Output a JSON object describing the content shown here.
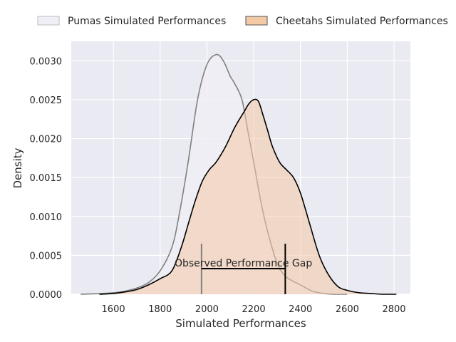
{
  "chart_data": {
    "type": "area",
    "xlabel": "Simulated Performances",
    "ylabel": "Density",
    "xlim": [
      1420,
      2870
    ],
    "ylim": [
      0,
      0.00325
    ],
    "xticks": [
      1600,
      1800,
      2000,
      2200,
      2400,
      2600,
      2800
    ],
    "xtick_labels": [
      "1600",
      "1800",
      "2000",
      "2200",
      "2400",
      "2600",
      "2800"
    ],
    "yticks": [
      0,
      0.0005,
      0.001,
      0.0015,
      0.002,
      0.0025,
      0.003
    ],
    "ytick_labels": [
      "0.0000",
      "0.0005",
      "0.0010",
      "0.0015",
      "0.0020",
      "0.0025",
      "0.0030"
    ],
    "grid": true,
    "legend_position": "top",
    "series": [
      {
        "name": "Pumas Simulated Performances",
        "fill": "#f0eff5",
        "line": "#808080",
        "x": [
          1460,
          1550,
          1600,
          1650,
          1700,
          1750,
          1800,
          1850,
          1880,
          1920,
          1960,
          2000,
          2040,
          2070,
          2100,
          2120,
          2150,
          2175,
          2200,
          2230,
          2260,
          2300,
          2330,
          2360,
          2400,
          2450,
          2500,
          2550,
          2600
        ],
        "y": [
          0,
          1e-05,
          2e-05,
          4e-05,
          8e-05,
          0.00015,
          0.0003,
          0.0006,
          0.001,
          0.0017,
          0.0025,
          0.00295,
          0.00308,
          0.003,
          0.0028,
          0.0027,
          0.0025,
          0.0021,
          0.0017,
          0.0012,
          0.0008,
          0.0004,
          0.00025,
          0.00018,
          0.00012,
          4e-05,
          1e-05,
          0,
          0
        ]
      },
      {
        "name": "Cheetahs Simulated Performances",
        "fill": "#f4c9a5",
        "line": "#000000",
        "x": [
          1540,
          1600,
          1650,
          1700,
          1750,
          1800,
          1850,
          1890,
          1920,
          1950,
          1980,
          2010,
          2040,
          2080,
          2120,
          2160,
          2180,
          2200,
          2220,
          2240,
          2260,
          2280,
          2310,
          2340,
          2370,
          2400,
          2440,
          2480,
          2520,
          2560,
          2600,
          2650,
          2700,
          2750,
          2810
        ],
        "y": [
          0,
          1e-05,
          3e-05,
          6e-05,
          0.00012,
          0.0002,
          0.0003,
          0.0006,
          0.0009,
          0.0012,
          0.00145,
          0.0016,
          0.0017,
          0.0019,
          0.00215,
          0.00235,
          0.00245,
          0.0025,
          0.00248,
          0.0023,
          0.0021,
          0.0019,
          0.0017,
          0.0016,
          0.0015,
          0.0013,
          0.0009,
          0.0005,
          0.00025,
          0.0001,
          5e-05,
          2e-05,
          1e-05,
          0,
          0
        ]
      }
    ],
    "annotation": {
      "text": "Observed Performance Gap",
      "x_start": 1977,
      "x_end": 2335,
      "y_bracket": 0.00033,
      "y_tick_top": 0.00065
    }
  }
}
